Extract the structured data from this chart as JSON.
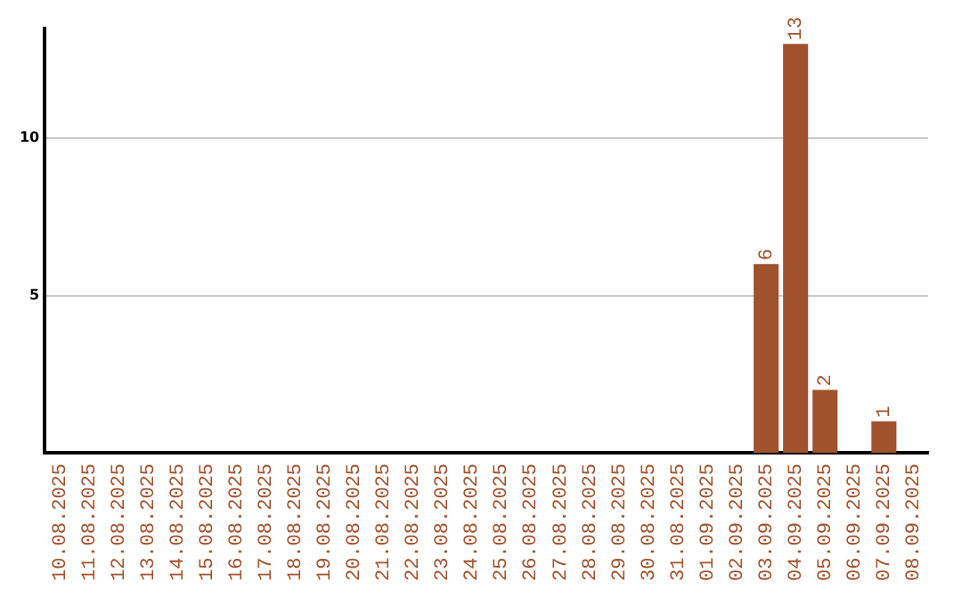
{
  "chart_data": {
    "type": "bar",
    "categories": [
      "10.08.2025",
      "11.08.2025",
      "12.08.2025",
      "13.08.2025",
      "14.08.2025",
      "15.08.2025",
      "16.08.2025",
      "17.08.2025",
      "18.08.2025",
      "19.08.2025",
      "20.08.2025",
      "21.08.2025",
      "22.08.2025",
      "23.08.2025",
      "24.08.2025",
      "25.08.2025",
      "26.08.2025",
      "27.08.2025",
      "28.08.2025",
      "29.08.2025",
      "30.08.2025",
      "31.08.2025",
      "01.09.2025",
      "02.09.2025",
      "03.09.2025",
      "04.09.2025",
      "05.09.2025",
      "06.09.2025",
      "07.09.2025",
      "08.09.2025"
    ],
    "values": [
      0,
      0,
      0,
      0,
      0,
      0,
      0,
      0,
      0,
      0,
      0,
      0,
      0,
      0,
      0,
      0,
      0,
      0,
      0,
      0,
      0,
      0,
      0,
      0,
      6,
      13,
      2,
      0,
      1,
      0
    ],
    "value_labels": [
      null,
      null,
      null,
      null,
      null,
      null,
      null,
      null,
      null,
      null,
      null,
      null,
      null,
      null,
      null,
      null,
      null,
      null,
      null,
      null,
      null,
      null,
      null,
      null,
      "6",
      "13",
      "2",
      null,
      "1",
      null
    ],
    "color": "#a0522d",
    "ylim": [
      0,
      13.5
    ],
    "yticks": [
      5,
      10
    ],
    "grid": "y"
  }
}
